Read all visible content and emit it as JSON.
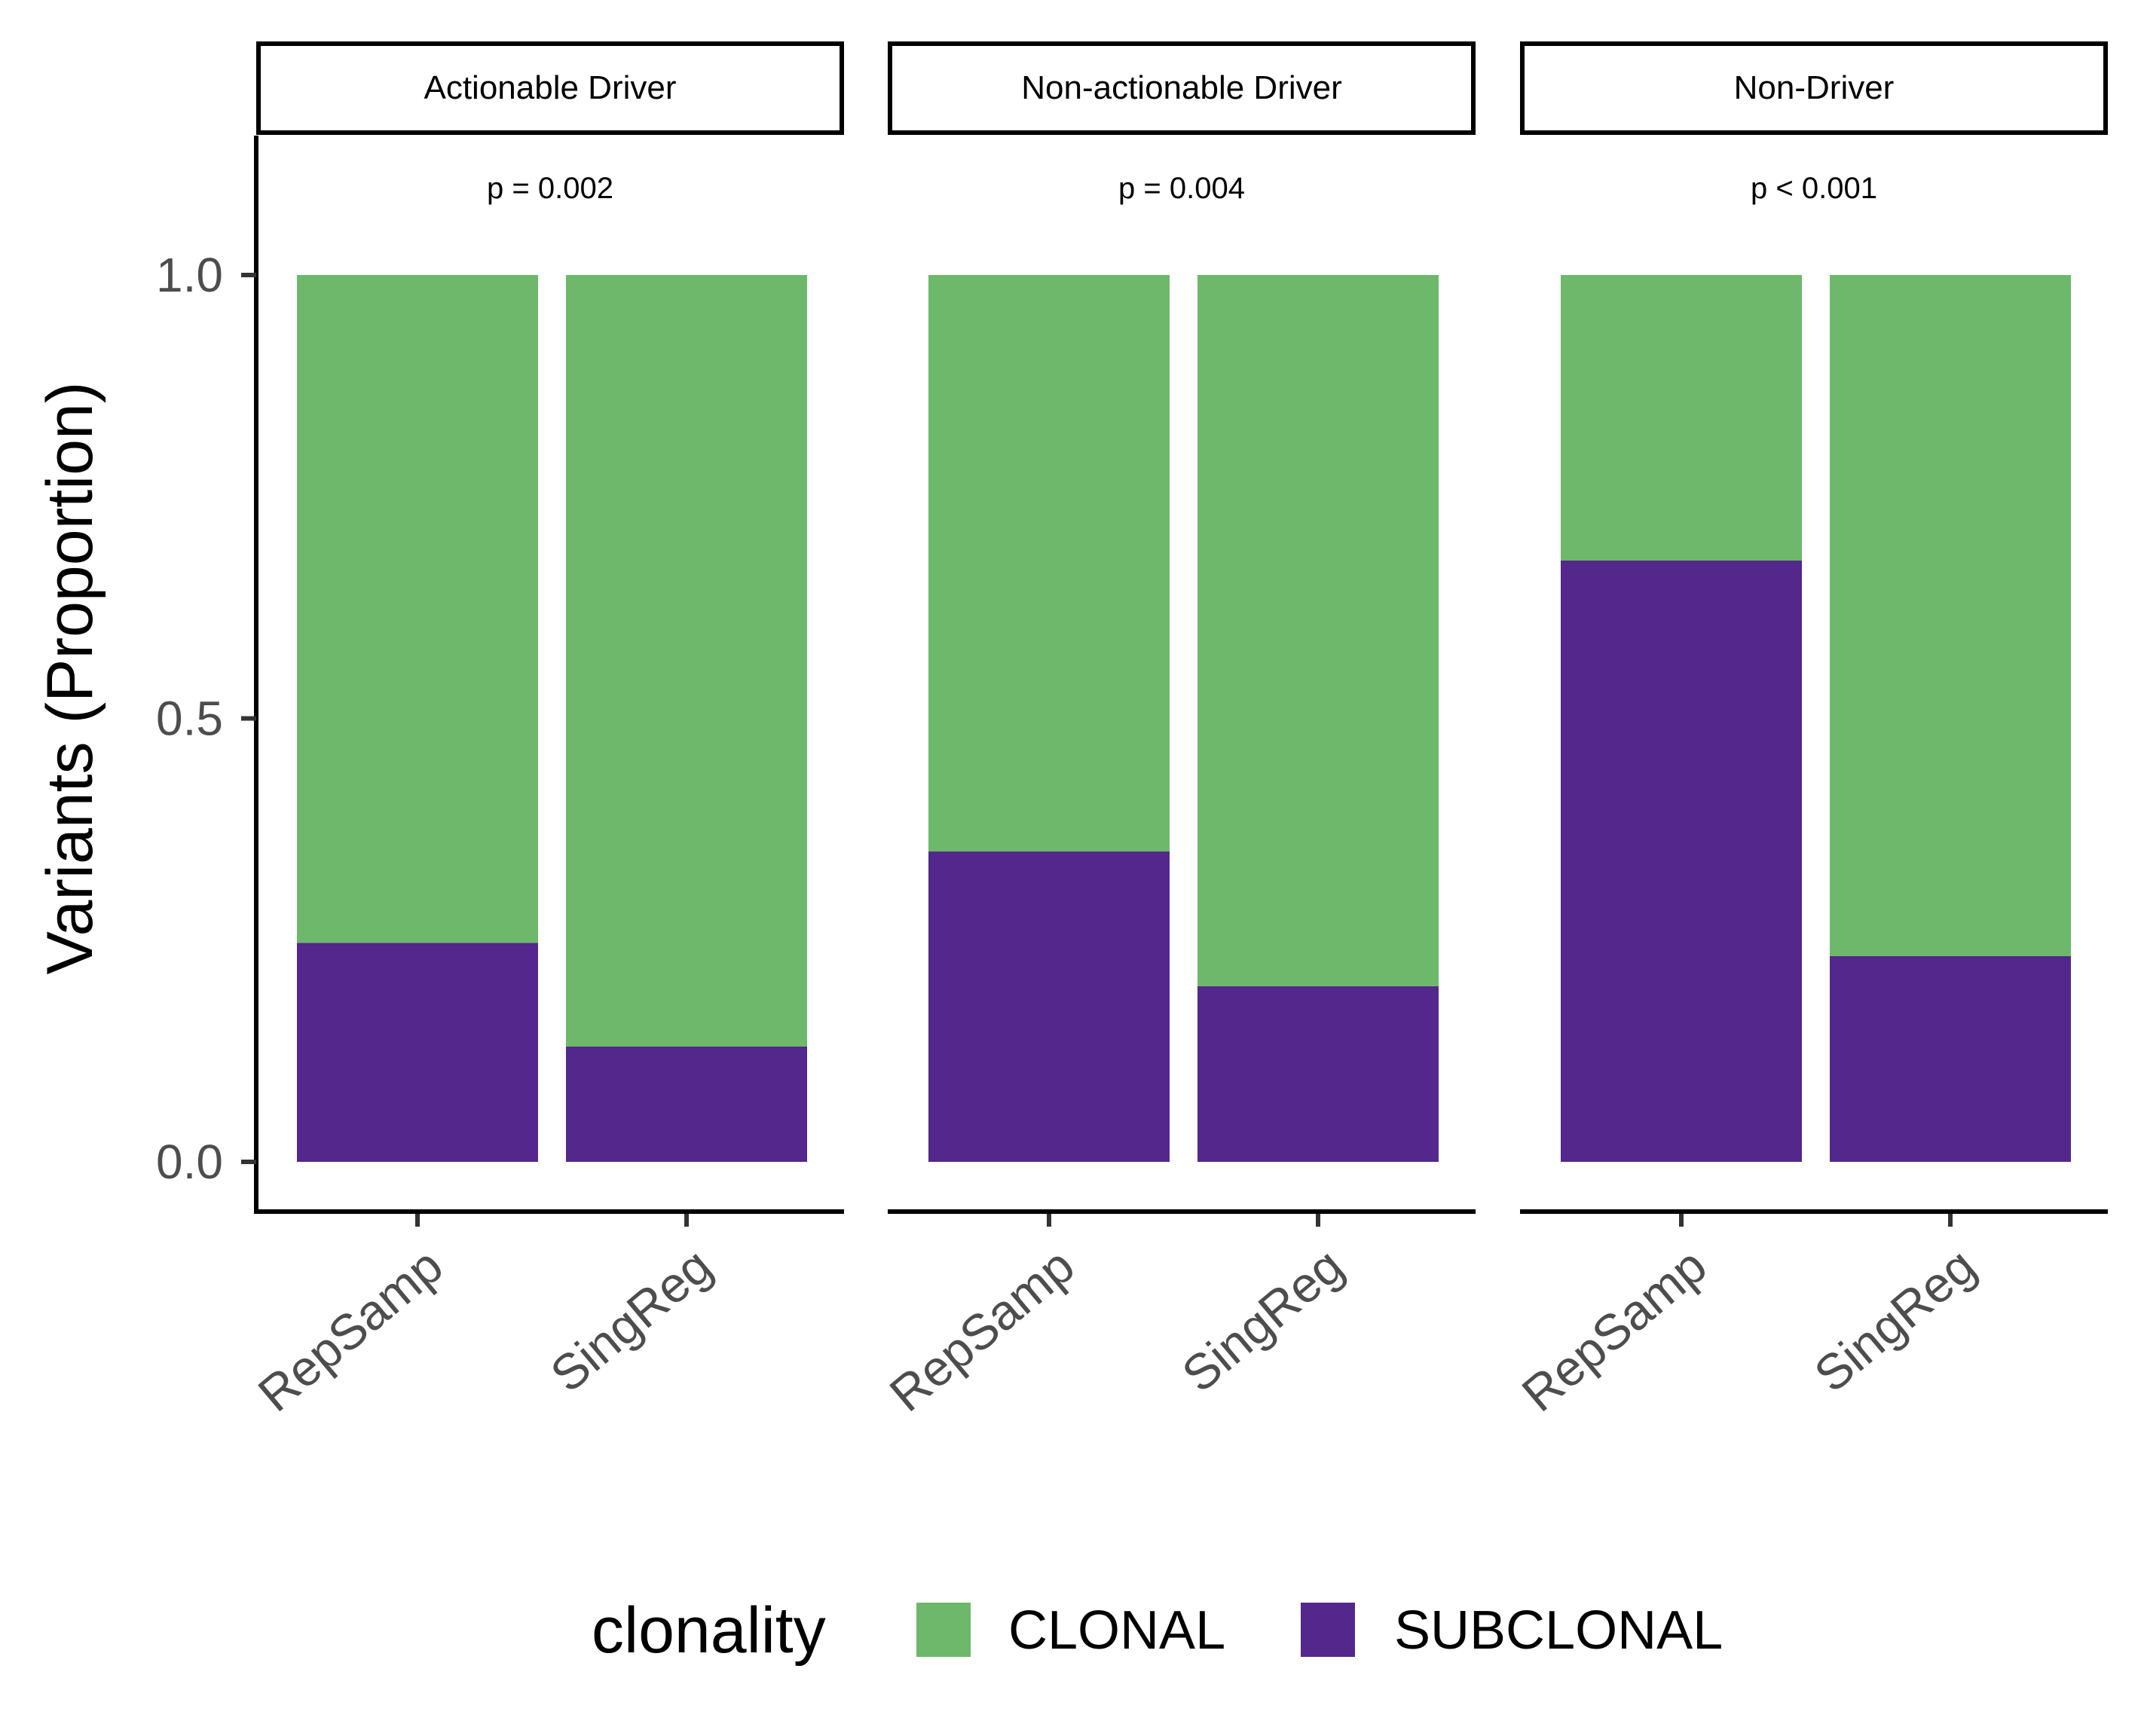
{
  "chart_data": {
    "type": "bar",
    "stacked": true,
    "ylabel": "Variants (Proportion)",
    "ylim": [
      0,
      1
    ],
    "yticks": [
      "0.0",
      "0.5",
      "1.0"
    ],
    "categories": [
      "RepSamp",
      "SingReg"
    ],
    "legend": {
      "title": "clonality",
      "position": "bottom",
      "entries": [
        {
          "name": "CLONAL",
          "color": "#6db86b"
        },
        {
          "name": "SUBCLONAL",
          "color": "#53278b"
        }
      ]
    },
    "panels": [
      {
        "title": "Actionable Driver",
        "annotation": "p = 0.002",
        "series": [
          {
            "name": "SUBCLONAL",
            "values": [
              0.247,
              0.13
            ]
          },
          {
            "name": "CLONAL",
            "values": [
              0.753,
              0.87
            ]
          }
        ]
      },
      {
        "title": "Non-actionable Driver",
        "annotation": "p = 0.004",
        "series": [
          {
            "name": "SUBCLONAL",
            "values": [
              0.35,
              0.198
            ]
          },
          {
            "name": "CLONAL",
            "values": [
              0.65,
              0.802
            ]
          }
        ]
      },
      {
        "title": "Non-Driver",
        "annotation": "p < 0.001",
        "series": [
          {
            "name": "SUBCLONAL",
            "values": [
              0.678,
              0.232
            ]
          },
          {
            "name": "CLONAL",
            "values": [
              0.322,
              0.768
            ]
          }
        ]
      }
    ]
  }
}
